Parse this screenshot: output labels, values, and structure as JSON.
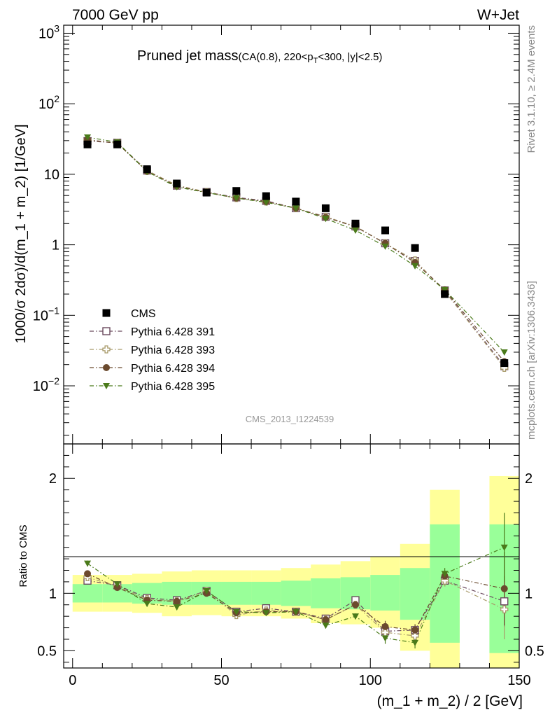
{
  "header": {
    "left": "7000 GeV pp",
    "right": "W+Jet"
  },
  "side_labels": {
    "top": "Rivet 3.1.10, ≥ 2.4M events",
    "bottom": "mcplots.cern.ch [arXiv:1306.3436]"
  },
  "chart_data": [
    {
      "type": "scatter",
      "title": "Pruned jet mass",
      "title_main": "Pruned jet mass",
      "title_cut_prefix": "(CA(0.8), 220<p",
      "title_cut_sub": "T",
      "title_cut_suffix": "<300, |y|<2.5)",
      "watermark": "CMS_2013_I1224539",
      "ylabel": "1000/σ 2dσ)/d(m_1 + m_2) [1/GeV]",
      "y_scale": "log",
      "ylim": [
        0.0015,
        1300
      ],
      "xlim": [
        -3,
        150
      ],
      "y_ticks": [
        {
          "v": 0.01,
          "base": "10",
          "exp": "−2"
        },
        {
          "v": 0.1,
          "base": "10",
          "exp": "−1"
        },
        {
          "v": 1,
          "label": "1"
        },
        {
          "v": 10,
          "label": "10"
        },
        {
          "v": 100,
          "base": "10",
          "exp": "2"
        },
        {
          "v": 1000,
          "base": "10",
          "exp": "3"
        }
      ],
      "legend_position": "middle-left",
      "x": [
        5,
        15,
        25,
        35,
        45,
        55,
        65,
        75,
        85,
        95,
        105,
        115,
        125,
        145
      ],
      "series": [
        {
          "name": "CMS",
          "color": "#000000",
          "marker": "square-filled",
          "values": [
            26.5,
            26.5,
            11.8,
            7.4,
            5.5,
            5.8,
            4.9,
            4.1,
            3.3,
            2.0,
            1.6,
            0.9,
            0.2,
            0.021
          ]
        },
        {
          "name": "Pythia 6.428 391",
          "color": "#6b4a5e",
          "marker": "square-open",
          "values": [
            29.5,
            28.0,
            11.3,
            6.9,
            5.6,
            4.7,
            4.2,
            3.3,
            2.5,
            1.82,
            1.05,
            0.59,
            0.225,
            0.019
          ]
        },
        {
          "name": "Pythia 6.428 393",
          "color": "#a89a6a",
          "marker": "cross-open",
          "values": [
            30.5,
            27.8,
            11.2,
            7.0,
            5.6,
            4.6,
            4.1,
            3.3,
            2.5,
            1.82,
            1.05,
            0.6,
            0.22,
            0.018
          ]
        },
        {
          "name": "Pythia 6.428 394",
          "color": "#6b4a2e",
          "marker": "circle-filled",
          "values": [
            31.0,
            27.5,
            11.0,
            6.8,
            5.5,
            4.6,
            4.1,
            3.3,
            2.45,
            1.8,
            1.05,
            0.56,
            0.23,
            0.022
          ]
        },
        {
          "name": "Pythia 6.428 395",
          "color": "#4a7a1a",
          "marker": "triangle-down-filled",
          "values": [
            33.5,
            28.5,
            10.9,
            6.6,
            5.5,
            4.6,
            4.0,
            3.3,
            2.35,
            1.6,
            0.95,
            0.5,
            0.23,
            0.03
          ]
        }
      ]
    },
    {
      "type": "scatter",
      "ylabel": "Ratio to CMS",
      "xlabel": "(m_1 + m_2) / 2 [GeV]",
      "ylim": [
        0.35,
        2.3
      ],
      "xlim": [
        -3,
        150
      ],
      "x_ticks": [
        0,
        50,
        100,
        150
      ],
      "y_ticks": [
        0.5,
        1,
        2
      ],
      "reference_line": 1,
      "band_colors": {
        "inner": "#99ff99",
        "outer": "#ffff99"
      },
      "bands": [
        {
          "x0": 0,
          "x1": 10,
          "lo1": 0.92,
          "hi1": 1.08,
          "lo2": 0.84,
          "hi2": 1.16
        },
        {
          "x0": 10,
          "x1": 20,
          "lo1": 0.92,
          "hi1": 1.08,
          "lo2": 0.84,
          "hi2": 1.16
        },
        {
          "x0": 20,
          "x1": 30,
          "lo1": 0.91,
          "hi1": 1.09,
          "lo2": 0.83,
          "hi2": 1.17
        },
        {
          "x0": 30,
          "x1": 40,
          "lo1": 0.9,
          "hi1": 1.1,
          "lo2": 0.8,
          "hi2": 1.19
        },
        {
          "x0": 40,
          "x1": 50,
          "lo1": 0.9,
          "hi1": 1.1,
          "lo2": 0.81,
          "hi2": 1.2
        },
        {
          "x0": 50,
          "x1": 60,
          "lo1": 0.9,
          "hi1": 1.1,
          "lo2": 0.8,
          "hi2": 1.2
        },
        {
          "x0": 60,
          "x1": 70,
          "lo1": 0.9,
          "hi1": 1.1,
          "lo2": 0.8,
          "hi2": 1.2
        },
        {
          "x0": 70,
          "x1": 80,
          "lo1": 0.89,
          "hi1": 1.11,
          "lo2": 0.78,
          "hi2": 1.22
        },
        {
          "x0": 80,
          "x1": 90,
          "lo1": 0.87,
          "hi1": 1.13,
          "lo2": 0.74,
          "hi2": 1.25
        },
        {
          "x0": 90,
          "x1": 100,
          "lo1": 0.86,
          "hi1": 1.14,
          "lo2": 0.73,
          "hi2": 1.28
        },
        {
          "x0": 100,
          "x1": 110,
          "lo1": 0.85,
          "hi1": 1.16,
          "lo2": 0.7,
          "hi2": 1.32
        },
        {
          "x0": 110,
          "x1": 120,
          "lo1": 0.77,
          "hi1": 1.22,
          "lo2": 0.5,
          "hi2": 1.43
        },
        {
          "x0": 120,
          "x1": 130,
          "lo1": 0.57,
          "hi1": 1.6,
          "lo2": 0.3,
          "hi2": 1.9
        },
        {
          "x0": 140,
          "x1": 150,
          "lo1": 0.48,
          "hi1": 1.6,
          "lo2": 0.3,
          "hi2": 2.02
        }
      ],
      "x": [
        5,
        15,
        25,
        35,
        45,
        55,
        65,
        75,
        85,
        95,
        105,
        115,
        125,
        145
      ],
      "series": [
        {
          "name": "Pythia 6.428 391",
          "color": "#6b4a5e",
          "marker": "square-open",
          "values": [
            1.11,
            1.07,
            0.96,
            0.94,
            1.02,
            0.84,
            0.87,
            0.84,
            0.78,
            0.94,
            0.67,
            0.68,
            1.11,
            0.93
          ]
        },
        {
          "name": "Pythia 6.428 393",
          "color": "#a89a6a",
          "marker": "cross-open",
          "values": [
            1.14,
            1.06,
            0.95,
            0.93,
            1.02,
            0.81,
            0.85,
            0.84,
            0.77,
            0.9,
            0.66,
            0.63,
            1.11,
            0.86
          ]
        },
        {
          "name": "Pythia 6.428 394",
          "color": "#6b4a2e",
          "marker": "circle-filled",
          "values": [
            1.17,
            1.05,
            0.94,
            0.93,
            1.0,
            0.83,
            0.84,
            0.84,
            0.77,
            0.9,
            0.71,
            0.68,
            1.15,
            1.04
          ]
        },
        {
          "name": "Pythia 6.428 395",
          "color": "#4a7a1a",
          "marker": "triangle-down-filled",
          "values": [
            1.26,
            1.08,
            0.91,
            0.88,
            1.02,
            0.84,
            0.83,
            0.84,
            0.72,
            0.8,
            0.61,
            0.57,
            1.17,
            1.4
          ]
        }
      ],
      "error_bars_last": [
        0.22,
        0.26,
        0.32,
        0.3
      ]
    }
  ]
}
